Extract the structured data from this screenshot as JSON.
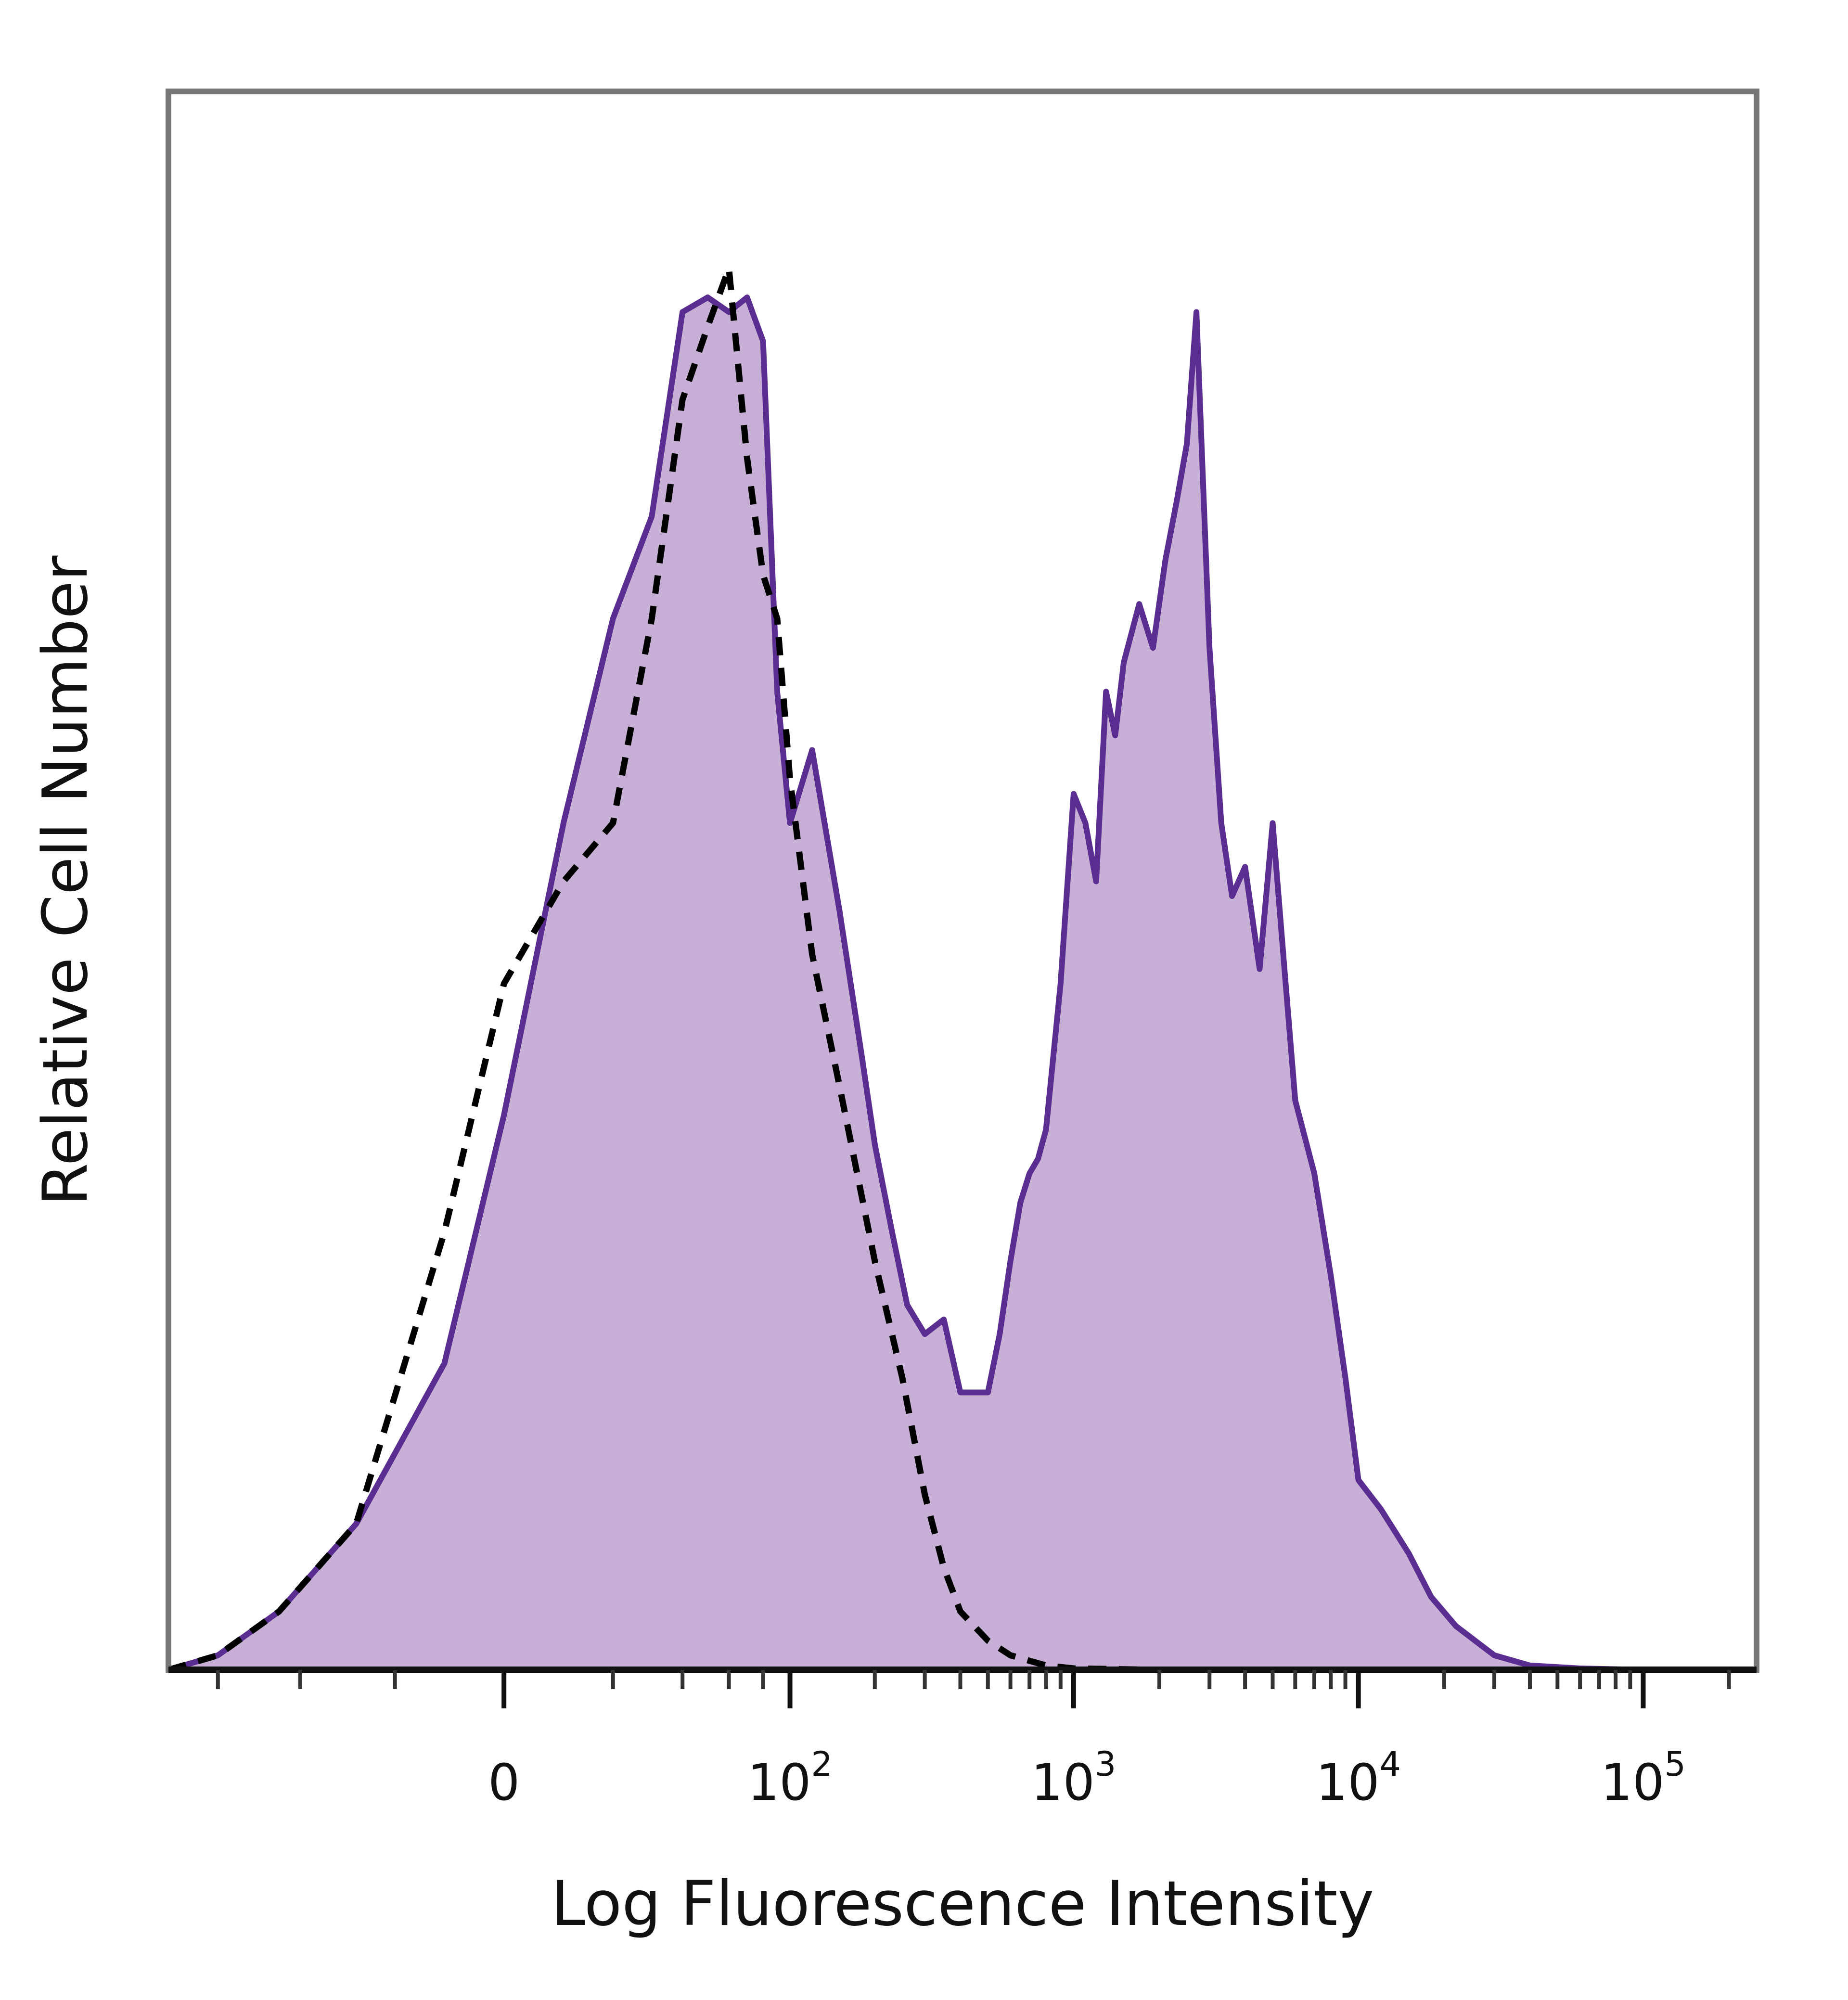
{
  "chart_data": {
    "type": "area",
    "xlabel": "Log Fluorescence Intensity",
    "ylabel": "Relative Cell Number",
    "x_scale": "biexponential",
    "x_ticks": [
      {
        "label": "0",
        "base": "0",
        "exp": "",
        "value": 0
      },
      {
        "label": "10^2",
        "base": "10",
        "exp": "2",
        "value": 100
      },
      {
        "label": "10^3",
        "base": "10",
        "exp": "3",
        "value": 1000
      },
      {
        "label": "10^4",
        "base": "10",
        "exp": "4",
        "value": 10000
      },
      {
        "label": "10^5",
        "base": "10",
        "exp": "5",
        "value": 100000
      }
    ],
    "xlim": [
      -150,
      250000
    ],
    "ylim": [
      0,
      100
    ],
    "grid": false,
    "colors": {
      "stained_line": "#5a2d91",
      "stained_fill": "#c8afd6",
      "control_line": "#000000",
      "frame": "#777777"
    },
    "series": [
      {
        "style": "filled-solid",
        "x": [
          -150,
          -100,
          -60,
          -30,
          -10,
          0,
          10,
          20,
          30,
          40,
          50,
          60,
          70,
          80,
          90,
          100,
          120,
          150,
          180,
          200,
          230,
          260,
          300,
          350,
          400,
          450,
          500,
          550,
          600,
          650,
          700,
          750,
          800,
          900,
          1000,
          1100,
          1200,
          1300,
          1400,
          1500,
          1700,
          1900,
          2100,
          2300,
          2500,
          2700,
          3000,
          3300,
          3600,
          4000,
          4500,
          5000,
          5500,
          6000,
          7000,
          8000,
          9000,
          10000,
          12000,
          15000,
          18000,
          22000,
          30000,
          40000,
          60000,
          100000,
          150000,
          250000
        ],
        "y": [
          0,
          1,
          4,
          10,
          21,
          38,
          58,
          72,
          79,
          93,
          94,
          93,
          94,
          91,
          67,
          58,
          63,
          52,
          42,
          36,
          30,
          25,
          23,
          24,
          19,
          19,
          19,
          23,
          28,
          32,
          34,
          35,
          37,
          47,
          60,
          58,
          54,
          67,
          64,
          69,
          73,
          70,
          76,
          80,
          84,
          93,
          70,
          58,
          53,
          55,
          48,
          58,
          48,
          39,
          34,
          27,
          20,
          13,
          11,
          8,
          5,
          3,
          1,
          0.3,
          0.1,
          0,
          0,
          0
        ]
      },
      {
        "style": "dashed",
        "x": [
          -150,
          -100,
          -60,
          -30,
          -10,
          0,
          10,
          20,
          30,
          40,
          50,
          60,
          70,
          80,
          90,
          100,
          120,
          150,
          200,
          250,
          300,
          350,
          400,
          500,
          600,
          800,
          1000,
          2000,
          5000,
          10000,
          50000,
          250000
        ],
        "y": [
          0,
          1,
          4,
          10,
          30,
          47,
          54,
          58,
          72,
          87,
          92,
          96,
          83,
          75,
          72,
          61,
          49,
          40,
          28,
          20,
          12,
          7,
          4,
          2,
          1,
          0.3,
          0.1,
          0,
          0,
          0,
          0,
          0
        ]
      }
    ]
  }
}
